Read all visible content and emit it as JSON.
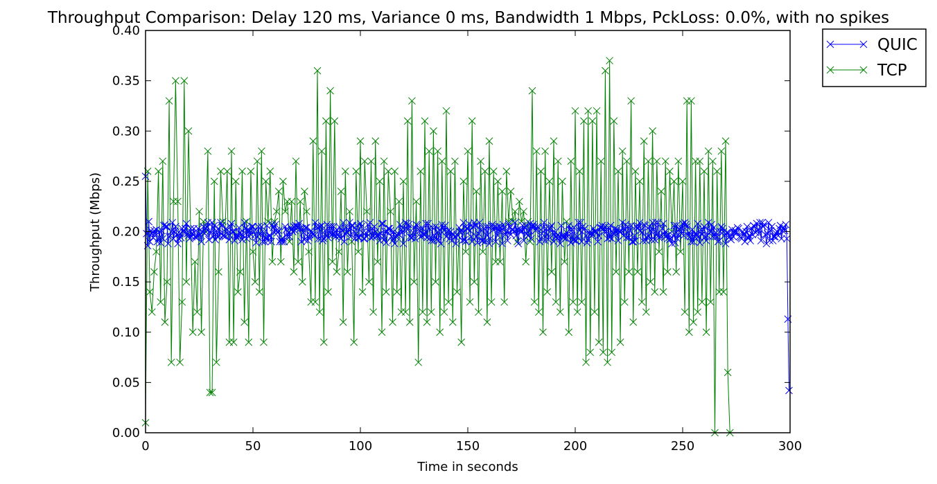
{
  "chart_data": {
    "type": "line",
    "title": "Throughput Comparison: Delay 120 ms, Variance 0 ms, Bandwidth 1 Mbps, PckLoss: 0.0%, with no spikes",
    "xlabel": "Time in seconds",
    "ylabel": "Throughput (Mbps)",
    "xlim": [
      0,
      300
    ],
    "ylim": [
      0,
      0.4
    ],
    "xticks": [
      "0",
      "50",
      "100",
      "150",
      "200",
      "250",
      "300"
    ],
    "yticks": [
      "0.00",
      "0.05",
      "0.10",
      "0.15",
      "0.20",
      "0.25",
      "0.30",
      "0.35",
      "0.40"
    ],
    "legend_position": "outside-top-right",
    "grid": false,
    "marker": "x",
    "series": [
      {
        "name": "QUIC",
        "color": "#0000ff",
        "x_start": 0,
        "x_step": 0.5,
        "values": [
          0.255,
          0.198,
          0.186,
          0.21,
          0.19,
          0.201,
          0.198,
          0.194,
          0.201,
          0.198,
          0.202,
          0.19,
          0.193,
          0.2,
          0.189,
          0.201,
          0.193,
          0.206,
          0.207,
          0.205,
          0.205,
          0.188,
          0.195,
          0.196,
          0.2,
          0.209,
          0.193,
          0.2,
          0.205,
          0.197,
          0.188,
          0.193,
          0.198,
          0.194,
          0.203,
          0.2,
          0.199,
          0.203,
          0.208,
          0.198,
          0.196,
          0.193,
          0.203,
          0.195,
          0.198,
          0.203,
          0.195,
          0.194,
          0.196,
          0.203,
          0.196,
          0.197,
          0.19,
          0.2,
          0.205,
          0.198,
          0.203,
          0.205,
          0.209,
          0.192,
          0.2,
          0.199,
          0.209,
          0.195,
          0.206,
          0.192,
          0.201,
          0.195,
          0.203,
          0.196,
          0.209,
          0.206,
          0.196,
          0.196,
          0.195,
          0.203,
          0.202,
          0.198,
          0.192,
          0.205,
          0.208,
          0.2,
          0.2,
          0.191,
          0.196,
          0.194,
          0.196,
          0.204,
          0.199,
          0.197,
          0.192,
          0.196,
          0.209,
          0.203,
          0.193,
          0.202,
          0.195,
          0.201,
          0.197,
          0.205,
          0.205,
          0.2,
          0.197,
          0.189,
          0.195,
          0.205,
          0.197,
          0.198,
          0.205,
          0.19,
          0.199,
          0.19,
          0.194,
          0.206,
          0.191,
          0.196,
          0.196,
          0.19,
          0.207,
          0.204,
          0.199,
          0.207,
          0.201,
          0.199,
          0.201,
          0.19,
          0.192,
          0.19,
          0.193,
          0.19,
          0.205,
          0.202,
          0.195,
          0.199,
          0.195,
          0.204,
          0.202,
          0.2,
          0.205,
          0.201,
          0.206,
          0.204,
          0.205,
          0.208,
          0.203,
          0.19,
          0.203,
          0.199,
          0.192,
          0.204,
          0.204,
          0.191,
          0.194,
          0.197,
          0.201,
          0.199,
          0.197,
          0.196,
          0.209,
          0.205,
          0.204,
          0.193,
          0.205,
          0.193,
          0.206,
          0.191,
          0.193,
          0.201,
          0.196,
          0.207,
          0.194,
          0.205,
          0.198,
          0.205,
          0.197,
          0.205,
          0.197,
          0.195,
          0.202,
          0.197,
          0.195,
          0.204,
          0.193,
          0.201,
          0.209,
          0.19,
          0.198,
          0.204,
          0.199,
          0.202,
          0.209,
          0.195,
          0.206,
          0.206,
          0.2,
          0.193,
          0.198,
          0.206,
          0.194,
          0.194,
          0.208,
          0.205,
          0.199,
          0.193,
          0.193,
          0.199,
          0.195,
          0.207,
          0.2,
          0.209,
          0.194,
          0.203,
          0.195,
          0.205,
          0.2,
          0.196,
          0.196,
          0.197,
          0.191,
          0.198,
          0.208,
          0.208,
          0.192,
          0.2,
          0.189,
          0.2,
          0.203,
          0.203,
          0.201,
          0.195,
          0.191,
          0.2,
          0.188,
          0.195,
          0.196,
          0.198,
          0.197,
          0.207,
          0.202,
          0.199,
          0.188,
          0.202,
          0.209,
          0.208,
          0.202,
          0.207,
          0.195,
          0.194,
          0.194,
          0.199,
          0.204,
          0.193,
          0.207,
          0.206,
          0.202,
          0.201,
          0.195,
          0.196,
          0.203,
          0.197,
          0.197,
          0.208,
          0.194,
          0.208,
          0.203,
          0.194,
          0.191,
          0.204,
          0.191,
          0.196,
          0.205,
          0.192,
          0.2,
          0.191,
          0.202,
          0.188,
          0.207,
          0.204,
          0.201,
          0.206,
          0.195,
          0.2,
          0.201,
          0.193,
          0.2,
          0.191,
          0.198,
          0.197,
          0.195,
          0.188,
          0.197,
          0.196,
          0.204,
          0.2,
          0.201,
          0.191,
          0.209,
          0.192,
          0.19,
          0.203,
          0.203,
          0.208,
          0.201,
          0.195,
          0.19,
          0.205,
          0.209,
          0.206,
          0.195,
          0.189,
          0.198,
          0.209,
          0.202,
          0.191,
          0.191,
          0.203,
          0.19,
          0.205,
          0.196,
          0.205,
          0.188,
          0.193,
          0.206,
          0.207,
          0.202,
          0.205,
          0.19,
          0.204,
          0.196,
          0.205,
          0.2,
          0.204,
          0.188,
          0.207,
          0.204,
          0.197,
          0.2,
          0.191,
          0.208,
          0.205,
          0.197,
          0.202,
          0.202,
          0.2,
          0.209,
          0.196,
          0.202,
          0.188,
          0.201,
          0.202,
          0.2,
          0.206,
          0.191,
          0.204,
          0.206,
          0.198,
          0.196,
          0.201,
          0.208,
          0.193,
          0.205,
          0.207,
          0.205,
          0.201,
          0.202,
          0.205,
          0.204,
          0.19,
          0.193,
          0.198,
          0.204,
          0.209,
          0.191,
          0.203,
          0.197,
          0.192,
          0.203,
          0.204,
          0.206,
          0.199,
          0.19,
          0.199,
          0.195,
          0.193,
          0.197,
          0.195,
          0.188,
          0.206,
          0.196,
          0.194,
          0.196,
          0.193,
          0.199,
          0.195,
          0.206,
          0.202,
          0.189,
          0.202,
          0.192,
          0.204,
          0.191,
          0.191,
          0.195,
          0.209,
          0.201,
          0.209,
          0.19,
          0.205,
          0.202,
          0.203,
          0.196,
          0.189,
          0.192,
          0.199,
          0.197,
          0.199,
          0.197,
          0.203,
          0.2,
          0.2,
          0.199,
          0.19,
          0.196,
          0.204,
          0.204,
          0.206,
          0.203,
          0.2,
          0.205,
          0.2,
          0.193,
          0.204,
          0.194,
          0.206,
          0.193,
          0.199,
          0.198,
          0.203,
          0.199,
          0.202,
          0.191,
          0.2,
          0.2,
          0.201,
          0.209,
          0.196,
          0.202,
          0.207,
          0.194,
          0.205,
          0.194,
          0.201,
          0.206,
          0.19,
          0.19,
          0.196,
          0.191,
          0.205,
          0.203,
          0.205,
          0.209,
          0.201,
          0.199,
          0.191,
          0.207,
          0.206,
          0.191,
          0.194,
          0.196,
          0.205,
          0.201,
          0.192,
          0.209,
          0.202,
          0.192,
          0.209,
          0.197,
          0.209,
          0.194,
          0.195,
          0.196,
          0.203,
          0.208,
          0.197,
          0.2,
          0.196,
          0.193,
          0.197,
          0.192,
          0.193,
          0.188,
          0.196,
          0.206,
          0.189,
          0.206,
          0.193,
          0.197,
          0.202,
          0.204,
          0.198,
          0.208,
          0.196,
          0.209,
          0.207,
          0.205,
          0.196,
          0.199,
          0.195,
          0.19,
          0.202,
          0.19,
          0.195,
          0.198,
          0.196,
          0.208,
          0.195,
          0.189,
          0.202,
          0.197,
          0.202,
          0.205,
          0.195,
          0.191,
          0.196,
          0.209,
          0.201,
          0.2,
          0.207,
          0.195,
          0.204,
          0.195,
          0.199,
          0.195,
          0.19,
          0.191,
          0.2,
          0.205,
          0.203,
          0.2,
          0.196,
          0.188,
          0.199,
          0.199,
          0.194,
          0.195,
          0.192,
          0.202,
          0.195,
          0.199,
          0.201,
          0.199,
          0.204,
          0.203,
          0.195,
          0.194,
          0.193,
          0.2,
          0.197,
          0.19,
          0.2,
          0.205,
          0.194,
          0.196,
          0.191,
          0.203,
          0.197,
          0.206,
          0.205,
          0.199,
          0.208,
          0.202,
          0.198,
          0.209,
          0.191,
          0.209,
          0.205,
          0.207,
          0.197,
          0.188,
          0.198,
          0.209,
          0.191,
          0.201,
          0.205,
          0.191,
          0.195,
          0.195,
          0.198,
          0.2,
          0.196,
          0.203,
          0.206,
          0.193,
          0.201,
          0.204,
          0.201,
          0.207,
          0.193,
          0.113,
          0.042
        ]
      },
      {
        "name": "TCP",
        "color": "#008000",
        "x_start": 0,
        "x_step": 1,
        "values": [
          0.01,
          0.26,
          0.14,
          0.12,
          0.16,
          0.18,
          0.26,
          0.13,
          0.27,
          0.11,
          0.15,
          0.33,
          0.07,
          0.23,
          0.35,
          0.23,
          0.07,
          0.13,
          0.35,
          0.15,
          0.3,
          0.2,
          0.1,
          0.17,
          0.12,
          0.22,
          0.1,
          0.21,
          0.2,
          0.28,
          0.04,
          0.04,
          0.25,
          0.07,
          0.16,
          0.26,
          0.21,
          0.2,
          0.26,
          0.09,
          0.28,
          0.09,
          0.25,
          0.14,
          0.16,
          0.26,
          0.11,
          0.21,
          0.09,
          0.26,
          0.18,
          0.15,
          0.27,
          0.14,
          0.28,
          0.09,
          0.25,
          0.21,
          0.26,
          0.17,
          0.21,
          0.22,
          0.24,
          0.17,
          0.25,
          0.22,
          0.23,
          0.19,
          0.23,
          0.16,
          0.27,
          0.17,
          0.23,
          0.15,
          0.24,
          0.22,
          0.18,
          0.13,
          0.29,
          0.13,
          0.36,
          0.12,
          0.28,
          0.09,
          0.31,
          0.14,
          0.34,
          0.17,
          0.31,
          0.16,
          0.18,
          0.24,
          0.11,
          0.26,
          0.16,
          0.22,
          0.19,
          0.09,
          0.26,
          0.18,
          0.29,
          0.14,
          0.27,
          0.22,
          0.15,
          0.27,
          0.12,
          0.29,
          0.17,
          0.25,
          0.1,
          0.27,
          0.14,
          0.26,
          0.22,
          0.11,
          0.26,
          0.14,
          0.23,
          0.12,
          0.25,
          0.12,
          0.31,
          0.11,
          0.33,
          0.15,
          0.23,
          0.07,
          0.26,
          0.12,
          0.31,
          0.11,
          0.28,
          0.12,
          0.3,
          0.15,
          0.28,
          0.1,
          0.27,
          0.12,
          0.32,
          0.13,
          0.26,
          0.11,
          0.27,
          0.14,
          0.2,
          0.09,
          0.25,
          0.18,
          0.28,
          0.13,
          0.31,
          0.15,
          0.24,
          0.12,
          0.27,
          0.18,
          0.26,
          0.11,
          0.29,
          0.13,
          0.26,
          0.17,
          0.25,
          0.17,
          0.24,
          0.13,
          0.26,
          0.21,
          0.24,
          0.21,
          0.22,
          0.19,
          0.23,
          0.21,
          0.22,
          0.17,
          0.21,
          0.19,
          0.34,
          0.13,
          0.28,
          0.12,
          0.26,
          0.1,
          0.28,
          0.14,
          0.25,
          0.16,
          0.29,
          0.13,
          0.27,
          0.12,
          0.25,
          0.17,
          0.21,
          0.1,
          0.27,
          0.13,
          0.32,
          0.12,
          0.26,
          0.13,
          0.31,
          0.07,
          0.32,
          0.08,
          0.31,
          0.12,
          0.32,
          0.09,
          0.27,
          0.08,
          0.36,
          0.07,
          0.37,
          0.08,
          0.31,
          0.16,
          0.26,
          0.09,
          0.28,
          0.13,
          0.27,
          0.16,
          0.33,
          0.11,
          0.26,
          0.16,
          0.25,
          0.13,
          0.29,
          0.12,
          0.27,
          0.15,
          0.3,
          0.14,
          0.27,
          0.18,
          0.24,
          0.14,
          0.27,
          0.16,
          0.26,
          0.2,
          0.25,
          0.16,
          0.27,
          0.18,
          0.25,
          0.12,
          0.33,
          0.1,
          0.33,
          0.11,
          0.27,
          0.12,
          0.27,
          0.13,
          0.26,
          0.1,
          0.28,
          0.13,
          0.27,
          0.0,
          0.26,
          0.14,
          0.28,
          0.14,
          0.29,
          0.06,
          0.0
        ]
      }
    ]
  }
}
